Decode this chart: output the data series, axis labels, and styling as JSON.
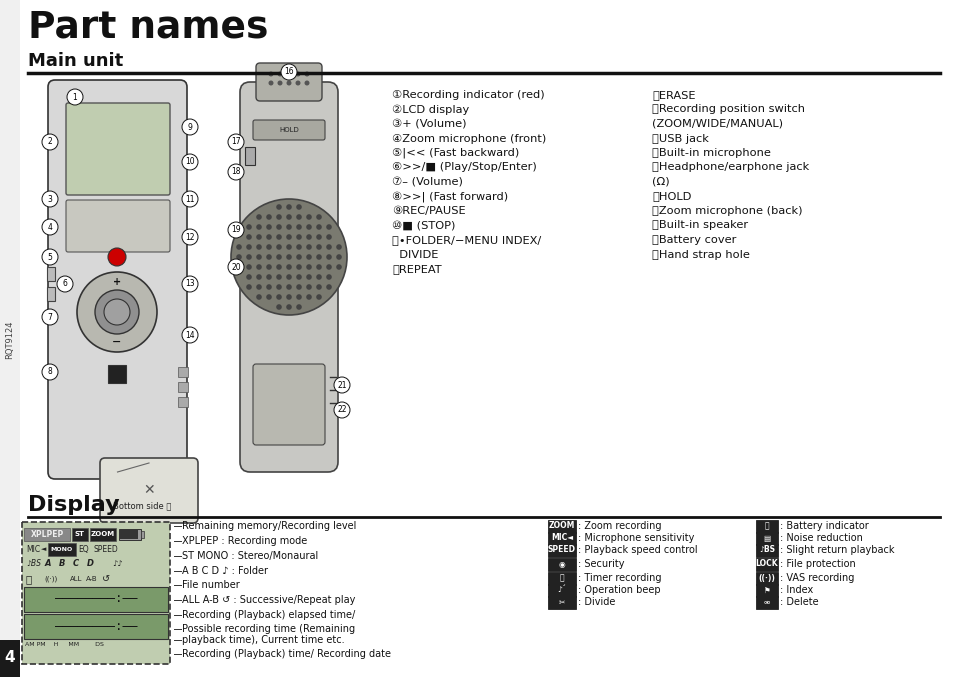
{
  "title": "Part names",
  "subtitle": "Main unit",
  "display_section_title": "Display",
  "bg_color": "#ffffff",
  "title_color": "#000000",
  "page_number": "4",
  "page_bg": "#1a1a1a",
  "side_label": "RQT9124",
  "label_fontsize": 8.5,
  "part_labels_left": [
    [
      "①",
      "Recording indicator (red)"
    ],
    [
      "②",
      "LCD display"
    ],
    [
      "③",
      "+ (Volume)"
    ],
    [
      "④",
      "Zoom microphone (front)"
    ],
    [
      "⑤",
      "|<< (Fast backward)"
    ],
    [
      "⑥",
      ">>/■ (Play/Stop/Enter)"
    ],
    [
      "⑦",
      "– (Volume)"
    ],
    [
      "⑧",
      ">>| (Fast forward)"
    ],
    [
      "⑨",
      "REC/PAUSE"
    ],
    [
      "⑩",
      "■ (STOP)"
    ],
    [
      "⑪",
      "•FOLDER/−MENU INDEX/"
    ],
    [
      "",
      "  DIVIDE"
    ],
    [
      "⑫",
      "REPEAT"
    ]
  ],
  "part_labels_right": [
    [
      "⑬",
      "ERASE"
    ],
    [
      "⑭",
      "Recording position switch"
    ],
    [
      "",
      "(ZOOM/WIDE/MANUAL)"
    ],
    [
      "⑮",
      "USB jack"
    ],
    [
      "⑯",
      "Built-in microphone"
    ],
    [
      "⑰",
      "Headphone/earphone jack"
    ],
    [
      "",
      "(Ω)"
    ],
    [
      "⑱",
      "HOLD"
    ],
    [
      "⑲",
      "Zoom microphone (back)"
    ],
    [
      "⑳",
      "Built-in speaker"
    ],
    [
      "⑴",
      "Battery cover"
    ],
    [
      "⑵",
      "Hand strap hole"
    ]
  ],
  "display_annotations": [
    "Remaining memory/Recording level",
    "XPLPEP : Recording mode",
    "ST MONO : Stereo/Monaural",
    "A B C D ♪ : Folder",
    "File number",
    "ALL A-B ↺ : Successive/Repeat play",
    "Recording (Playback) elapsed time/",
    "Possible recording time (Remaining",
    "playback time), Current time etc.",
    "Recording (Playback) time/ Recording date"
  ],
  "display_mid_annotations": [
    [
      "ZOOM",
      ": Zoom recording"
    ],
    [
      "MIC◄",
      ": Microphone sensitivity"
    ],
    [
      "SPEED",
      ": Playback speed control"
    ],
    [
      "◉",
      ": Security"
    ],
    [
      "⏰",
      ": Timer recording"
    ],
    [
      "♪´",
      ": Operation beep"
    ],
    [
      "✂",
      ": Divide"
    ]
  ],
  "display_right_annotations": [
    [
      "⎕",
      ": Battery indicator"
    ],
    [
      "▤",
      ": Noise reduction"
    ],
    [
      "♪BS",
      ": Slight return playback"
    ],
    [
      "LOCK",
      ": File protection"
    ],
    [
      "((·))",
      ": VAS recording"
    ],
    [
      "⚑",
      ": Index"
    ],
    [
      "⚮",
      ": Delete"
    ]
  ]
}
